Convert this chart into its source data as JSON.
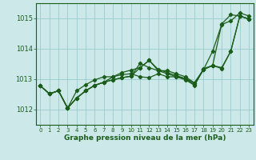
{
  "xlabel": "Graphe pression niveau de la mer (hPa)",
  "background_color": "#cce8e8",
  "grid_color": "#99cccc",
  "line_color": "#1a5c1a",
  "text_color": "#1a5c1a",
  "ylim": [
    1011.5,
    1015.5
  ],
  "xlim": [
    -0.5,
    23.5
  ],
  "yticks": [
    1012,
    1013,
    1014,
    1015
  ],
  "xtick_labels": [
    "0",
    "1",
    "2",
    "3",
    "4",
    "5",
    "6",
    "7",
    "8",
    "9",
    "10",
    "11",
    "12",
    "13",
    "14",
    "15",
    "16",
    "17",
    "18",
    "19",
    "20",
    "21",
    "22",
    "23"
  ],
  "series": [
    [
      1012.78,
      1012.52,
      1012.62,
      1012.05,
      1012.38,
      1012.62,
      1012.8,
      1012.9,
      1012.98,
      1013.05,
      1013.1,
      1013.38,
      1013.62,
      1013.28,
      1013.18,
      1013.08,
      1012.98,
      1012.8,
      1013.32,
      1013.92,
      1014.8,
      1014.92,
      1015.18,
      1015.08
    ],
    [
      1012.78,
      1012.52,
      1012.62,
      1012.05,
      1012.38,
      1012.62,
      1012.8,
      1012.9,
      1012.98,
      1013.05,
      1013.1,
      1013.52,
      1013.38,
      1013.28,
      1013.28,
      1013.18,
      1013.08,
      1012.88,
      1013.32,
      1013.45,
      1014.82,
      1015.12,
      1015.08,
      1014.98
    ],
    [
      1012.78,
      1012.52,
      1012.62,
      1012.05,
      1012.62,
      1012.82,
      1012.98,
      1013.08,
      1013.08,
      1013.15,
      1013.18,
      1013.08,
      1013.05,
      1013.18,
      1013.08,
      1013.08,
      1013.02,
      1012.82,
      1013.35,
      1013.45,
      1013.38,
      1013.92,
      1015.08,
      1014.98
    ],
    [
      1012.78,
      1012.52,
      1012.62,
      1012.05,
      1012.38,
      1012.62,
      1012.8,
      1012.9,
      1013.08,
      1013.22,
      1013.3,
      1013.38,
      1013.62,
      1013.32,
      1013.22,
      1013.12,
      1013.02,
      1012.88,
      1013.32,
      1013.45,
      1013.35,
      1013.92,
      1015.08,
      1014.98
    ]
  ]
}
